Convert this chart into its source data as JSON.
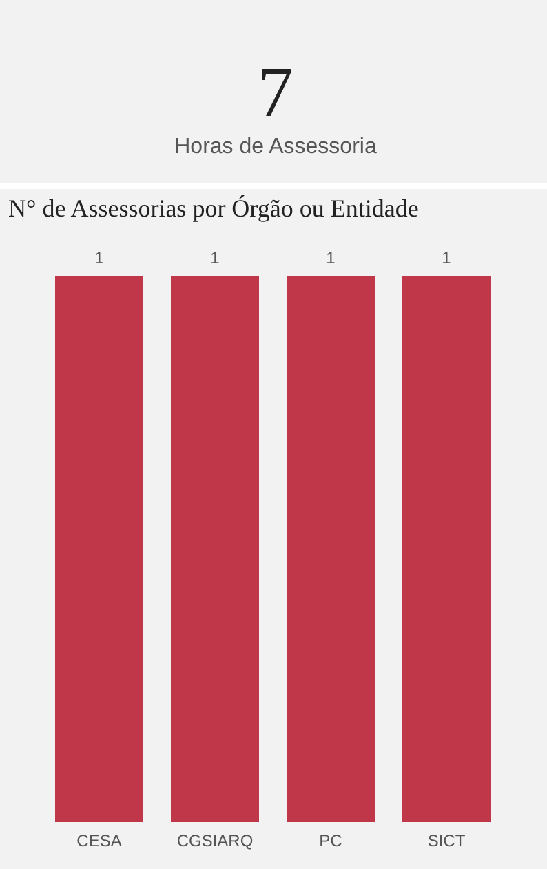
{
  "chart_data": [
    {
      "type": "other",
      "annotations": [
        "7",
        "Horas de Assessoria"
      ]
    },
    {
      "type": "bar",
      "title": "N° de Assessorias por Órgão ou Entidade",
      "categories": [
        "CESA",
        "CGSIARQ",
        "PC",
        "SICT"
      ],
      "values": [
        1,
        1,
        1,
        1
      ],
      "color": "#c0374a",
      "data_labels": true
    }
  ]
}
